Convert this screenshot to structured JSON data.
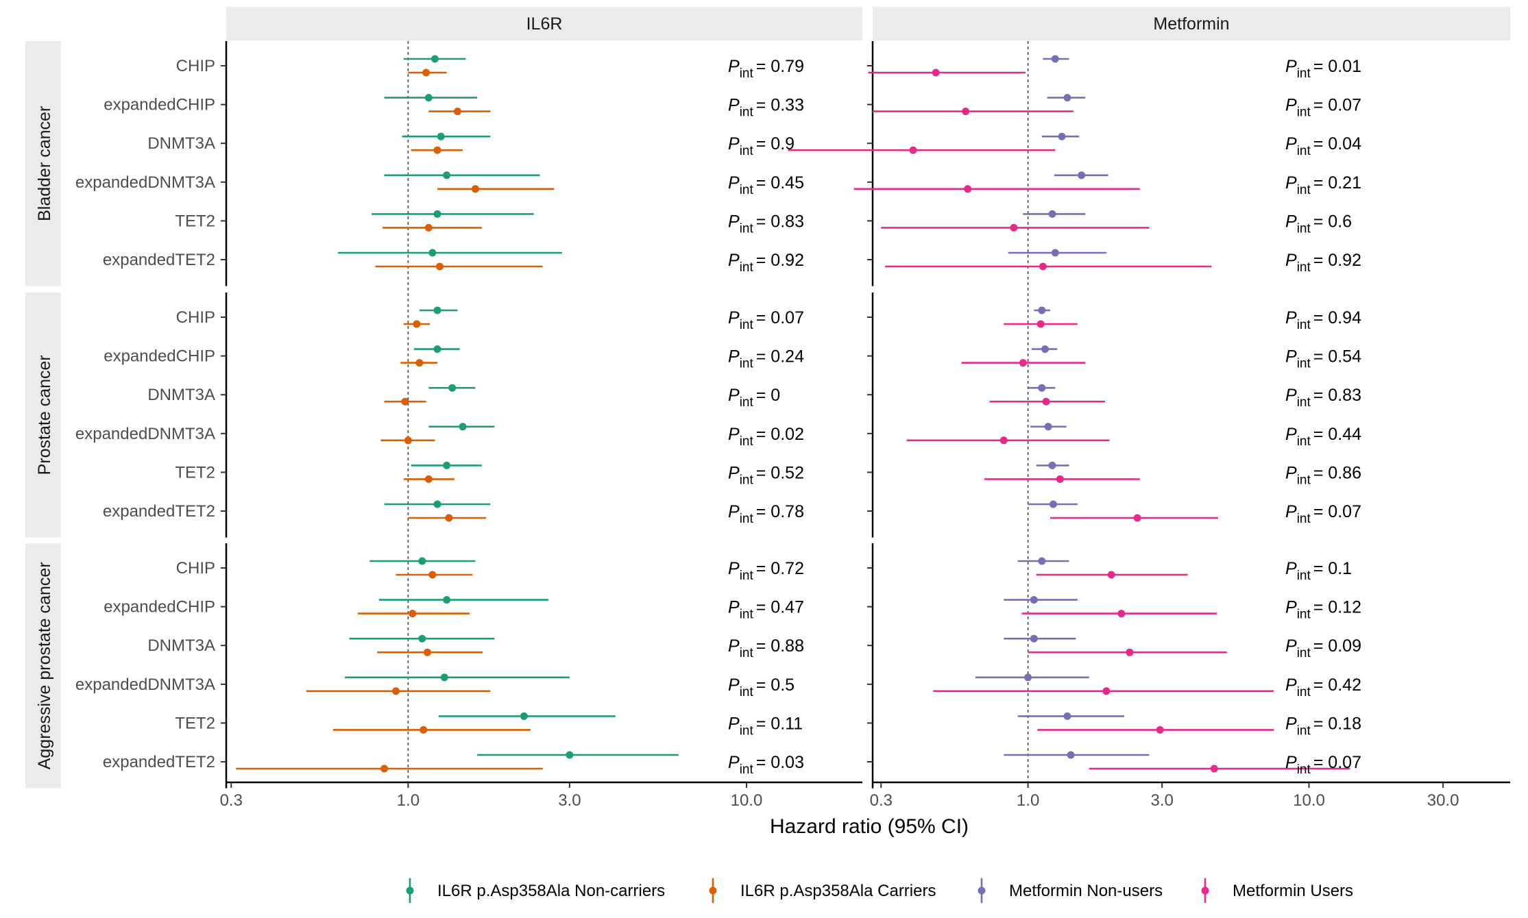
{
  "chart_data": {
    "type": "forest",
    "xlabel": "Hazard ratio (95% CI)",
    "x_scale": "log",
    "ref_line": 1.0,
    "colors": {
      "IL6R p.Asp358Ala Non-carriers": "#1b9e77",
      "IL6R p.Asp358Ala Carriers": "#d95f02",
      "Metformin Non-users": "#7570b3",
      "Metformin Users": "#e7298a"
    },
    "legend": {
      "position": "bottom",
      "items": [
        "IL6R p.Asp358Ala Non-carriers",
        "IL6R p.Asp358Ala Carriers",
        "Metformin Non-users",
        "Metformin Users"
      ]
    },
    "row_groups": [
      {
        "name": "Bladder cancer",
        "rows": [
          "CHIP",
          "expandedCHIP",
          "DNMT3A",
          "expandedDNMT3A",
          "TET2",
          "expandedTET2"
        ]
      },
      {
        "name": "Prostate cancer",
        "rows": [
          "CHIP",
          "expandedCHIP",
          "DNMT3A",
          "expandedDNMT3A",
          "TET2",
          "expandedTET2"
        ]
      },
      {
        "name": "Aggressive prostate cancer",
        "rows": [
          "CHIP",
          "expandedCHIP",
          "DNMT3A",
          "expandedDNMT3A",
          "TET2",
          "expandedTET2"
        ]
      }
    ],
    "panels": [
      {
        "title": "IL6R",
        "xlim": [
          0.29,
          22
        ],
        "ticks": [
          0.3,
          1.0,
          3.0,
          10.0
        ],
        "tick_labels": [
          "0.3",
          "1.0",
          "3.0",
          "10.0"
        ],
        "p_label": "P",
        "p_sub": "int",
        "series_names": [
          "IL6R p.Asp358Ala Non-carriers",
          "IL6R p.Asp358Ala Carriers"
        ],
        "groups": [
          {
            "rows": [
              {
                "label": "CHIP",
                "p": "= 0.79",
                "est": [
                  [
                    1.2,
                    0.97,
                    1.48
                  ],
                  [
                    1.13,
                    1.0,
                    1.3
                  ]
                ]
              },
              {
                "label": "expandedCHIP",
                "p": "= 0.33",
                "est": [
                  [
                    1.15,
                    0.85,
                    1.6
                  ],
                  [
                    1.4,
                    1.15,
                    1.75
                  ]
                ]
              },
              {
                "label": "DNMT3A",
                "p": "= 0.9",
                "est": [
                  [
                    1.25,
                    0.96,
                    1.75
                  ],
                  [
                    1.22,
                    1.02,
                    1.45
                  ]
                ]
              },
              {
                "label": "expandedDNMT3A",
                "p": "= 0.45",
                "est": [
                  [
                    1.3,
                    0.85,
                    2.45
                  ],
                  [
                    1.58,
                    1.22,
                    2.7
                  ]
                ]
              },
              {
                "label": "TET2",
                "p": "= 0.83",
                "est": [
                  [
                    1.22,
                    0.78,
                    2.35
                  ],
                  [
                    1.15,
                    0.84,
                    1.65
                  ]
                ]
              },
              {
                "label": "expandedTET2",
                "p": "= 0.92",
                "est": [
                  [
                    1.18,
                    0.62,
                    2.85
                  ],
                  [
                    1.24,
                    0.8,
                    2.5
                  ]
                ]
              }
            ]
          },
          {
            "rows": [
              {
                "label": "CHIP",
                "p": "= 0.07",
                "est": [
                  [
                    1.22,
                    1.08,
                    1.4
                  ],
                  [
                    1.06,
                    0.97,
                    1.16
                  ]
                ]
              },
              {
                "label": "expandedCHIP",
                "p": "= 0.24",
                "est": [
                  [
                    1.22,
                    1.04,
                    1.42
                  ],
                  [
                    1.08,
                    0.95,
                    1.22
                  ]
                ]
              },
              {
                "label": "DNMT3A",
                "p": "= 0",
                "est": [
                  [
                    1.35,
                    1.15,
                    1.58
                  ],
                  [
                    0.98,
                    0.85,
                    1.13
                  ]
                ]
              },
              {
                "label": "expandedDNMT3A",
                "p": "= 0.02",
                "est": [
                  [
                    1.45,
                    1.15,
                    1.8
                  ],
                  [
                    1.0,
                    0.83,
                    1.2
                  ]
                ]
              },
              {
                "label": "TET2",
                "p": "= 0.52",
                "est": [
                  [
                    1.3,
                    1.02,
                    1.65
                  ],
                  [
                    1.15,
                    0.97,
                    1.37
                  ]
                ]
              },
              {
                "label": "expandedTET2",
                "p": "= 0.78",
                "est": [
                  [
                    1.22,
                    0.85,
                    1.75
                  ],
                  [
                    1.32,
                    1.0,
                    1.7
                  ]
                ]
              }
            ]
          },
          {
            "rows": [
              {
                "label": "CHIP",
                "p": "= 0.72",
                "est": [
                  [
                    1.1,
                    0.77,
                    1.58
                  ],
                  [
                    1.18,
                    0.92,
                    1.55
                  ]
                ]
              },
              {
                "label": "expandedCHIP",
                "p": "= 0.47",
                "est": [
                  [
                    1.3,
                    0.82,
                    2.6
                  ],
                  [
                    1.03,
                    0.71,
                    1.52
                  ]
                ]
              },
              {
                "label": "DNMT3A",
                "p": "= 0.88",
                "est": [
                  [
                    1.1,
                    0.67,
                    1.8
                  ],
                  [
                    1.14,
                    0.81,
                    1.66
                  ]
                ]
              },
              {
                "label": "expandedDNMT3A",
                "p": "= 0.5",
                "est": [
                  [
                    1.28,
                    0.65,
                    3.0
                  ],
                  [
                    0.92,
                    0.5,
                    1.75
                  ]
                ]
              },
              {
                "label": "TET2",
                "p": "= 0.11",
                "est": [
                  [
                    2.2,
                    1.23,
                    4.1
                  ],
                  [
                    1.11,
                    0.6,
                    2.3
                  ]
                ]
              },
              {
                "label": "expandedTET2",
                "p": "= 0.03",
                "est": [
                  [
                    3.0,
                    1.6,
                    6.3
                  ],
                  [
                    0.85,
                    0.31,
                    2.5
                  ]
                ]
              }
            ]
          }
        ]
      },
      {
        "title": "Metformin",
        "xlim": [
          0.28,
          52
        ],
        "ticks": [
          0.3,
          1.0,
          3.0,
          10.0,
          30.0
        ],
        "tick_labels": [
          "0.3",
          "1.0",
          "3.0",
          "10.0",
          "30.0"
        ],
        "p_label": "P",
        "p_sub": "int",
        "series_names": [
          "Metformin Non-users",
          "Metformin Users"
        ],
        "groups": [
          {
            "rows": [
              {
                "label": "CHIP",
                "p": "= 0.01",
                "est": [
                  [
                    1.25,
                    1.13,
                    1.4
                  ],
                  [
                    0.47,
                    0.27,
                    0.98
                  ]
                ]
              },
              {
                "label": "expandedCHIP",
                "p": "= 0.07",
                "est": [
                  [
                    1.38,
                    1.17,
                    1.6
                  ],
                  [
                    0.6,
                    0.28,
                    1.45
                  ]
                ]
              },
              {
                "label": "DNMT3A",
                "p": "= 0.04",
                "est": [
                  [
                    1.32,
                    1.12,
                    1.52
                  ],
                  [
                    0.39,
                    0.14,
                    1.25
                  ]
                ]
              },
              {
                "label": "expandedDNMT3A",
                "p": "= 0.21",
                "est": [
                  [
                    1.55,
                    1.24,
                    1.93
                  ],
                  [
                    0.61,
                    0.24,
                    2.5
                  ]
                ]
              },
              {
                "label": "TET2",
                "p": "= 0.6",
                "est": [
                  [
                    1.22,
                    0.96,
                    1.6
                  ],
                  [
                    0.89,
                    0.3,
                    2.7
                  ]
                ]
              },
              {
                "label": "expandedTET2",
                "p": "= 0.92",
                "est": [
                  [
                    1.25,
                    0.85,
                    1.9
                  ],
                  [
                    1.13,
                    0.31,
                    4.5
                  ]
                ]
              }
            ]
          },
          {
            "rows": [
              {
                "label": "CHIP",
                "p": "= 0.94",
                "est": [
                  [
                    1.12,
                    1.05,
                    1.2
                  ],
                  [
                    1.11,
                    0.82,
                    1.5
                  ]
                ]
              },
              {
                "label": "expandedCHIP",
                "p": "= 0.54",
                "est": [
                  [
                    1.15,
                    1.03,
                    1.27
                  ],
                  [
                    0.96,
                    0.58,
                    1.6
                  ]
                ]
              },
              {
                "label": "DNMT3A",
                "p": "= 0.83",
                "est": [
                  [
                    1.12,
                    1.0,
                    1.25
                  ],
                  [
                    1.16,
                    0.73,
                    1.88
                  ]
                ]
              },
              {
                "label": "expandedDNMT3A",
                "p": "= 0.44",
                "est": [
                  [
                    1.18,
                    1.02,
                    1.37
                  ],
                  [
                    0.82,
                    0.37,
                    1.95
                  ]
                ]
              },
              {
                "label": "TET2",
                "p": "= 0.86",
                "est": [
                  [
                    1.22,
                    1.07,
                    1.4
                  ],
                  [
                    1.3,
                    0.7,
                    2.5
                  ]
                ]
              },
              {
                "label": "expandedTET2",
                "p": "= 0.07",
                "est": [
                  [
                    1.23,
                    1.0,
                    1.5
                  ],
                  [
                    2.45,
                    1.2,
                    4.75
                  ]
                ]
              }
            ]
          },
          {
            "rows": [
              {
                "label": "CHIP",
                "p": "= 0.1",
                "est": [
                  [
                    1.12,
                    0.92,
                    1.4
                  ],
                  [
                    1.98,
                    1.07,
                    3.7
                  ]
                ]
              },
              {
                "label": "expandedCHIP",
                "p": "= 0.12",
                "est": [
                  [
                    1.05,
                    0.82,
                    1.5
                  ],
                  [
                    2.15,
                    0.95,
                    4.7
                  ]
                ]
              },
              {
                "label": "DNMT3A",
                "p": "= 0.09",
                "est": [
                  [
                    1.05,
                    0.82,
                    1.48
                  ],
                  [
                    2.3,
                    1.0,
                    5.1
                  ]
                ]
              },
              {
                "label": "expandedDNMT3A",
                "p": "= 0.42",
                "est": [
                  [
                    1.0,
                    0.65,
                    1.65
                  ],
                  [
                    1.9,
                    0.46,
                    7.5
                  ]
                ]
              },
              {
                "label": "TET2",
                "p": "= 0.18",
                "est": [
                  [
                    1.38,
                    0.92,
                    2.2
                  ],
                  [
                    2.95,
                    1.08,
                    7.5
                  ]
                ]
              },
              {
                "label": "expandedTET2",
                "p": "= 0.07",
                "est": [
                  [
                    1.42,
                    0.82,
                    2.7
                  ],
                  [
                    4.6,
                    1.65,
                    14.0
                  ]
                ]
              }
            ]
          }
        ]
      }
    ]
  }
}
